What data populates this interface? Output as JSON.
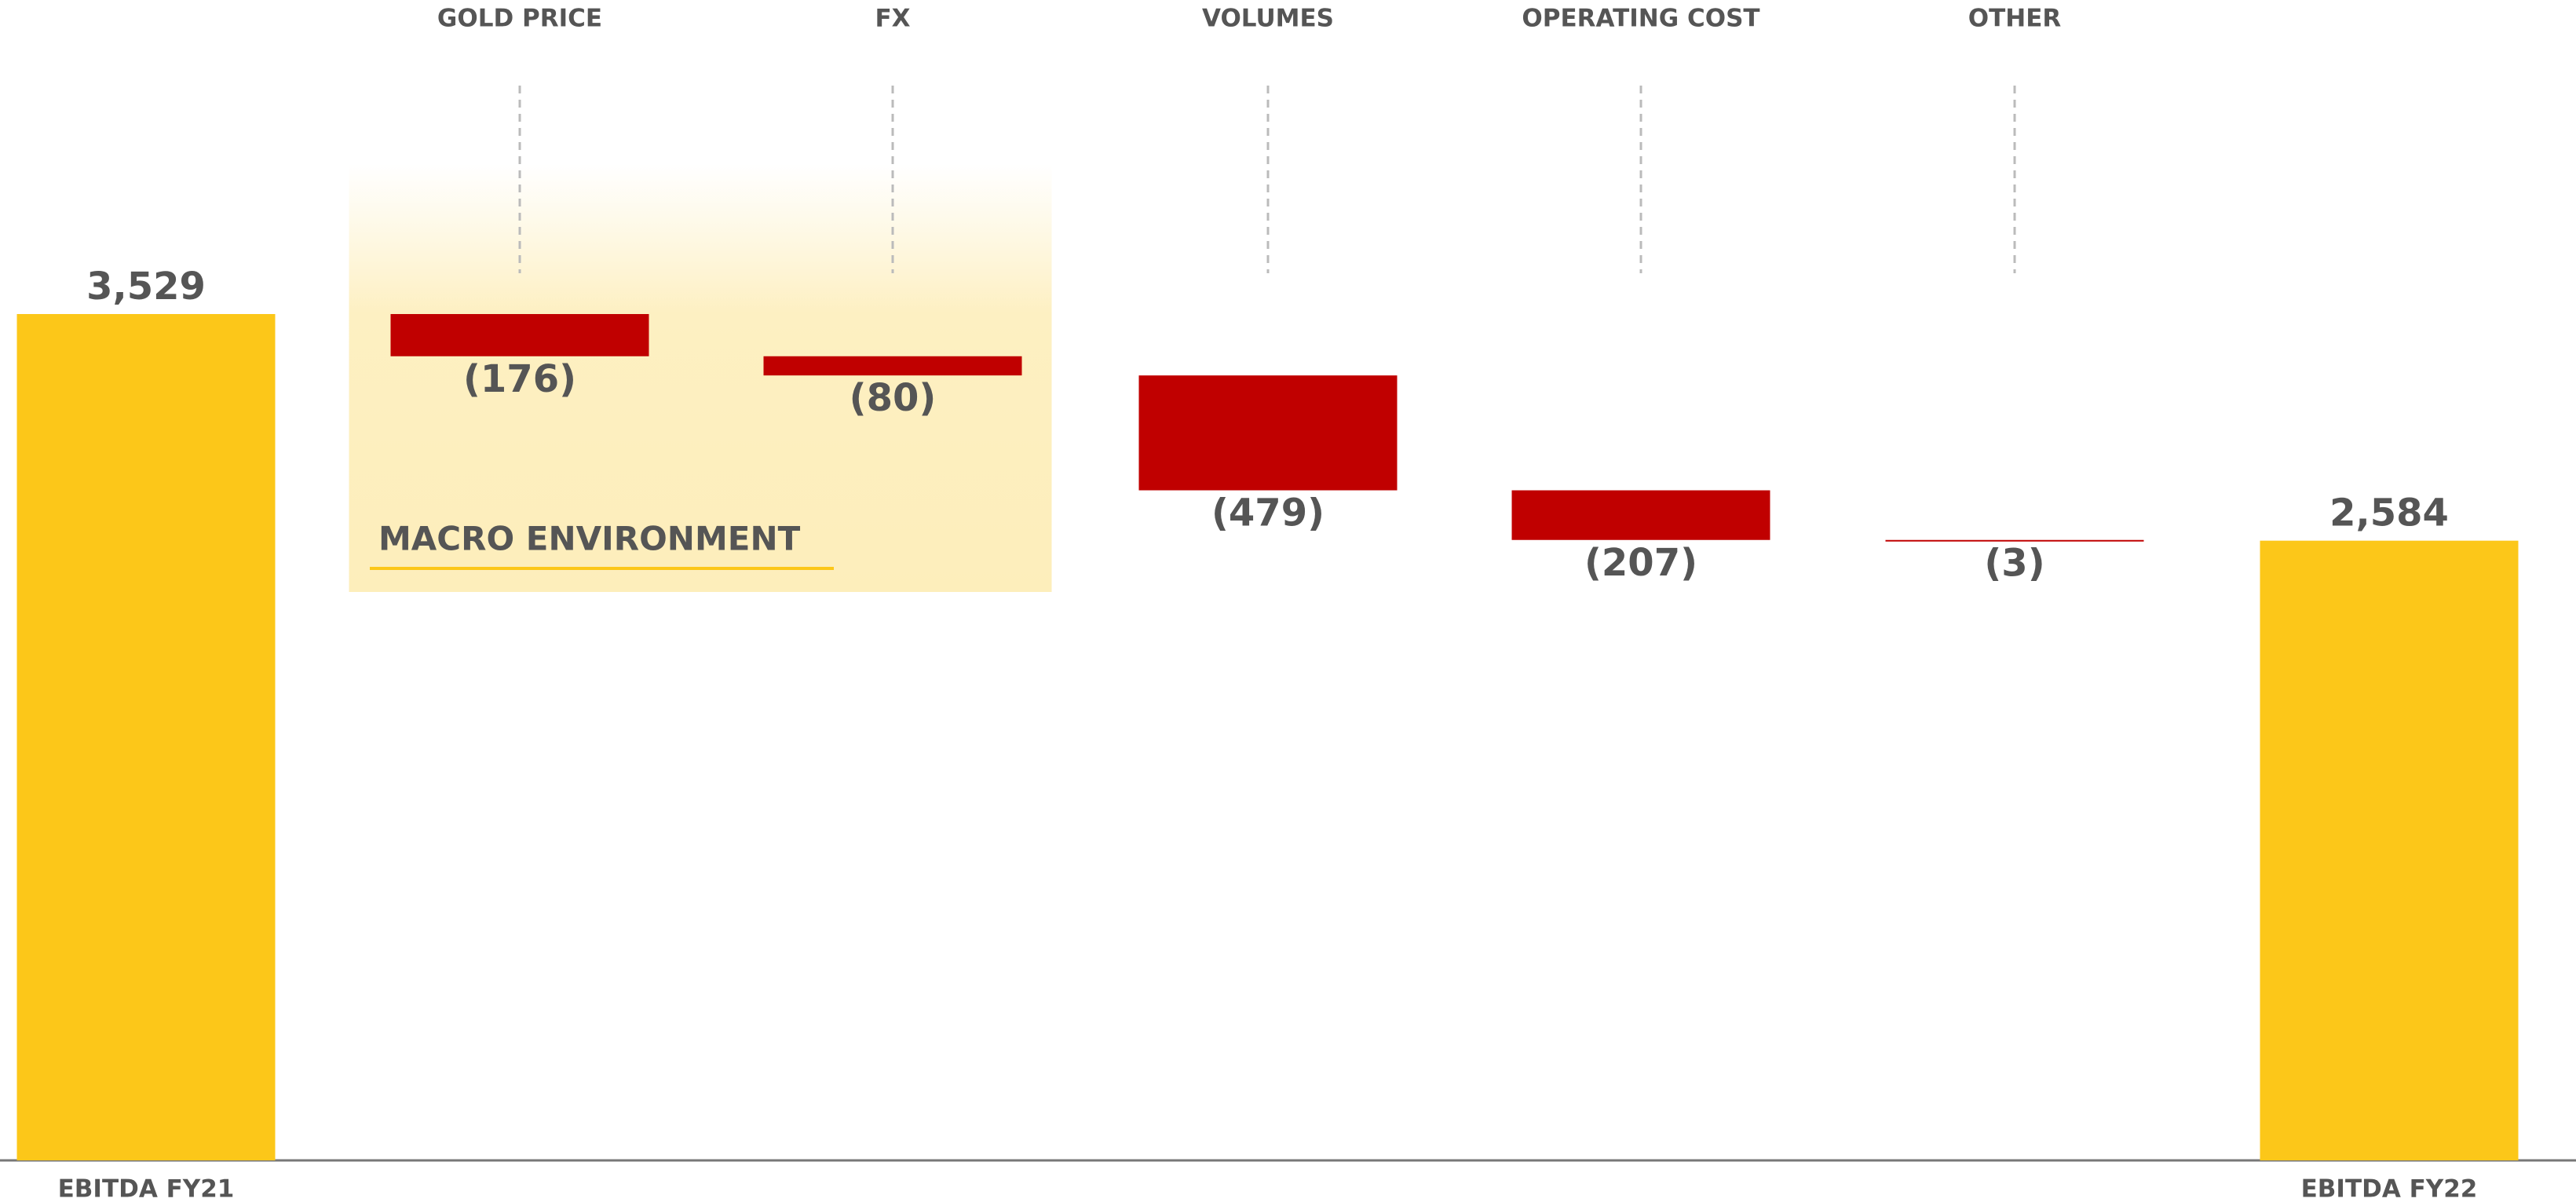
{
  "chart_data": {
    "type": "waterfall",
    "categories": [
      "EBITDA FY21",
      "GOLD PRICE",
      "FX",
      "VOLUMES",
      "OPERATING COST",
      "OTHER",
      "EBITDA FY22"
    ],
    "values": [
      3529,
      -176,
      -80,
      -479,
      -207,
      -3,
      2584
    ],
    "value_labels": [
      "3,529",
      "(176)",
      "(80)",
      "(479)",
      "(207)",
      "(3)",
      "2,584"
    ],
    "total_color": "#fcc719",
    "decrease_color": "#c00000",
    "annotations": [
      "MACRO ENVIRONMENT"
    ]
  }
}
